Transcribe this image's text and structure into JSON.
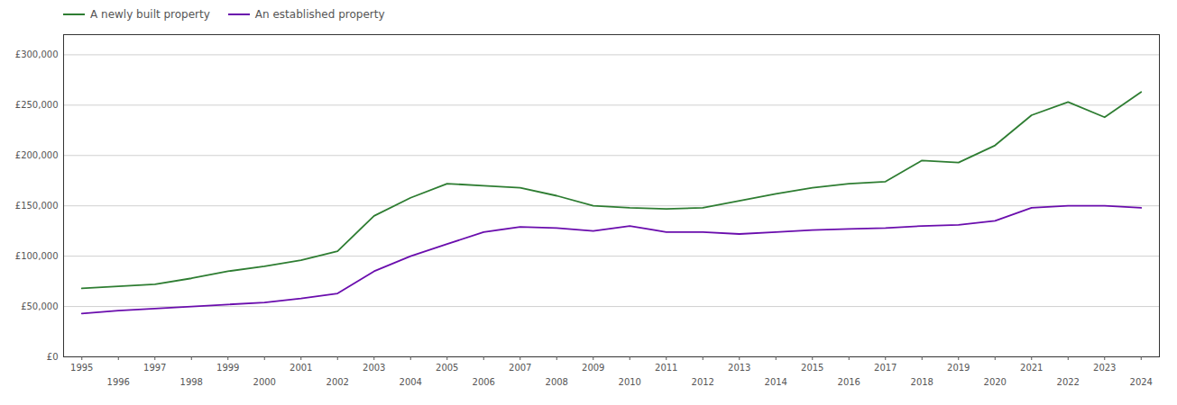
{
  "chart_data": {
    "type": "line",
    "x": [
      1995,
      1996,
      1997,
      1998,
      1999,
      2000,
      2001,
      2002,
      2003,
      2004,
      2005,
      2006,
      2007,
      2008,
      2009,
      2010,
      2011,
      2012,
      2013,
      2014,
      2015,
      2016,
      2017,
      2018,
      2019,
      2020,
      2021,
      2022,
      2023,
      2024
    ],
    "series": [
      {
        "name": "A newly built property",
        "color": "#2e7d32",
        "values": [
          68000,
          70000,
          72000,
          78000,
          85000,
          90000,
          96000,
          105000,
          140000,
          158000,
          172000,
          170000,
          168000,
          160000,
          150000,
          148000,
          147000,
          148000,
          155000,
          162000,
          168000,
          172000,
          174000,
          195000,
          193000,
          210000,
          240000,
          253000,
          238000,
          263000
        ]
      },
      {
        "name": "An established property",
        "color": "#6a0dad",
        "values": [
          43000,
          46000,
          48000,
          50000,
          52000,
          54000,
          58000,
          63000,
          85000,
          100000,
          112000,
          124000,
          129000,
          128000,
          125000,
          130000,
          124000,
          124000,
          122000,
          124000,
          126000,
          127000,
          128000,
          130000,
          131000,
          135000,
          148000,
          150000,
          150000,
          148000
        ]
      }
    ],
    "xlim": [
      1994.5,
      2024.5
    ],
    "xticks": [
      1995,
      1996,
      1997,
      1998,
      1999,
      2000,
      2001,
      2002,
      2003,
      2004,
      2005,
      2006,
      2007,
      2008,
      2009,
      2010,
      2011,
      2012,
      2013,
      2014,
      2015,
      2016,
      2017,
      2018,
      2019,
      2020,
      2021,
      2022,
      2023,
      2024
    ],
    "ylim": [
      0,
      320000
    ],
    "yticks": [
      {
        "value": 0,
        "label": "£0"
      },
      {
        "value": 50000,
        "label": "£50,000"
      },
      {
        "value": 100000,
        "label": "£100,000"
      },
      {
        "value": 150000,
        "label": "£150,000"
      },
      {
        "value": 200000,
        "label": "£200,000"
      },
      {
        "value": 250000,
        "label": "£250,000"
      },
      {
        "value": 300000,
        "label": "£300,000"
      }
    ],
    "grid": true,
    "legend": "upper left"
  }
}
